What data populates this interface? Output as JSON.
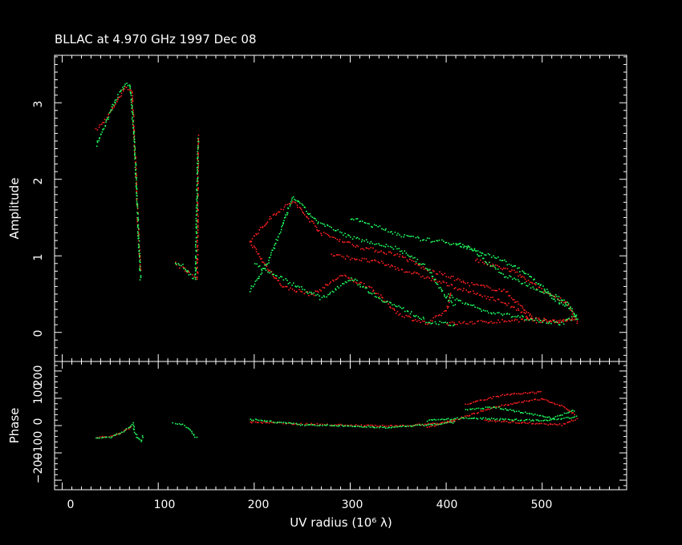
{
  "title": "BLLAC at 4.970 GHz 1997 Dec 08",
  "chart_data": [
    {
      "type": "scatter",
      "panel": "amplitude",
      "ylabel": "Amplitude",
      "xlim": [
        -8,
        588
      ],
      "ylim": [
        -0.38,
        3.62
      ],
      "x_ticks": [
        0,
        100,
        200,
        300,
        400,
        500
      ],
      "y_ticks": [
        0,
        1,
        2,
        3
      ],
      "tick_label_text": [
        "0",
        "1",
        "2",
        "3"
      ],
      "series": [
        {
          "color": "#ff2020",
          "segments": [
            [
              [
                35,
                2.65
              ],
              [
                45,
                2.8
              ],
              [
                55,
                3.0
              ],
              [
                65,
                3.22
              ],
              [
                72,
                3.15
              ],
              [
                75,
                2.4
              ],
              [
                78,
                1.5
              ],
              [
                81,
                0.78
              ]
            ],
            [
              [
                117,
                0.9
              ],
              [
                125,
                0.85
              ],
              [
                133,
                0.77
              ],
              [
                140,
                0.72
              ],
              [
                141,
                2.6
              ]
            ],
            [
              [
                195,
                1.2
              ],
              [
                210,
                0.9
              ],
              [
                230,
                0.6
              ],
              [
                260,
                0.5
              ],
              [
                290,
                0.75
              ],
              [
                320,
                0.6
              ],
              [
                350,
                0.25
              ],
              [
                380,
                0.12
              ],
              [
                400,
                0.3
              ],
              [
                405,
                0.55
              ]
            ],
            [
              [
                195,
                1.2
              ],
              [
                220,
                1.55
              ],
              [
                240,
                1.72
              ],
              [
                270,
                1.3
              ],
              [
                310,
                1.12
              ],
              [
                350,
                1.02
              ],
              [
                380,
                0.82
              ],
              [
                400,
                0.75
              ],
              [
                420,
                0.65
              ],
              [
                460,
                0.55
              ],
              [
                490,
                0.2
              ]
            ],
            [
              [
                280,
                1.02
              ],
              [
                330,
                0.92
              ],
              [
                380,
                0.72
              ],
              [
                420,
                0.55
              ],
              [
                460,
                0.4
              ],
              [
                480,
                0.25
              ],
              [
                490,
                0.15
              ],
              [
                520,
                0.16
              ],
              [
                535,
                0.2
              ]
            ],
            [
              [
                400,
                0.12
              ],
              [
                450,
                0.15
              ],
              [
                490,
                0.18
              ],
              [
                520,
                0.15
              ],
              [
                535,
                0.2
              ]
            ],
            [
              [
                430,
                0.95
              ],
              [
                470,
                0.8
              ],
              [
                500,
                0.55
              ],
              [
                525,
                0.4
              ],
              [
                537,
                0.1
              ]
            ]
          ]
        },
        {
          "color": "#20ff60",
          "segments": [
            [
              [
                35,
                2.45
              ],
              [
                45,
                2.75
              ],
              [
                55,
                3.05
              ],
              [
                65,
                3.25
              ],
              [
                70,
                3.25
              ],
              [
                75,
                2.4
              ],
              [
                78,
                1.5
              ],
              [
                81,
                0.68
              ]
            ],
            [
              [
                117,
                0.93
              ],
              [
                125,
                0.88
              ],
              [
                133,
                0.75
              ],
              [
                138,
                0.7
              ],
              [
                141,
                2.55
              ]
            ],
            [
              [
                195,
                0.55
              ],
              [
                215,
                0.95
              ],
              [
                240,
                1.78
              ],
              [
                265,
                1.45
              ],
              [
                300,
                1.25
              ],
              [
                350,
                1.1
              ],
              [
                380,
                0.85
              ],
              [
                400,
                0.45
              ],
              [
                410,
                0.35
              ]
            ],
            [
              [
                200,
                0.9
              ],
              [
                230,
                0.7
              ],
              [
                270,
                0.45
              ],
              [
                300,
                0.72
              ],
              [
                330,
                0.45
              ],
              [
                360,
                0.28
              ],
              [
                380,
                0.15
              ],
              [
                410,
                0.1
              ]
            ],
            [
              [
                300,
                1.5
              ],
              [
                360,
                1.25
              ],
              [
                420,
                1.15
              ],
              [
                460,
                0.75
              ],
              [
                500,
                0.55
              ],
              [
                530,
                0.3
              ],
              [
                537,
                0.15
              ]
            ],
            [
              [
                400,
                0.5
              ],
              [
                440,
                0.28
              ],
              [
                480,
                0.2
              ],
              [
                520,
                0.12
              ],
              [
                537,
                0.25
              ]
            ],
            [
              [
                410,
                1.15
              ],
              [
                450,
                1.0
              ],
              [
                480,
                0.8
              ],
              [
                510,
                0.5
              ],
              [
                530,
                0.35
              ]
            ]
          ]
        }
      ]
    },
    {
      "type": "scatter",
      "panel": "phase",
      "xlabel": "UV radius  (10⁶ λ)",
      "ylabel": "Phase",
      "xlim": [
        -8,
        588
      ],
      "ylim": [
        -235,
        235
      ],
      "x_ticks": [
        0,
        100,
        200,
        300,
        400,
        500
      ],
      "y_ticks": [
        -200,
        -100,
        0,
        100,
        200
      ],
      "x_tick_label_text": [
        "0",
        "100",
        "200",
        "300",
        "400",
        "500"
      ],
      "y_tick_label_text": [
        "−200",
        "−100",
        "0",
        "100",
        "200"
      ],
      "series": [
        {
          "color": "#ff2020",
          "segments": [
            [
              [
                35,
                -42
              ],
              [
                50,
                -38
              ],
              [
                60,
                -25
              ],
              [
                70,
                -5
              ],
              [
                72,
                5
              ]
            ],
            [
              [
                195,
                15
              ],
              [
                250,
                8
              ],
              [
                300,
                3
              ],
              [
                350,
                0
              ],
              [
                390,
                10
              ],
              [
                410,
                20
              ]
            ],
            [
              [
                380,
                -5
              ],
              [
                410,
                25
              ],
              [
                440,
                60
              ],
              [
                470,
                85
              ],
              [
                500,
                100
              ],
              [
                520,
                75
              ],
              [
                535,
                40
              ]
            ],
            [
              [
                420,
                80
              ],
              [
                460,
                115
              ],
              [
                500,
                125
              ]
            ],
            [
              [
                440,
                20
              ],
              [
                470,
                15
              ],
              [
                490,
                10
              ],
              [
                520,
                5
              ],
              [
                537,
                30
              ]
            ]
          ]
        },
        {
          "color": "#20ff60",
          "segments": [
            [
              [
                35,
                -42
              ],
              [
                50,
                -40
              ],
              [
                60,
                -25
              ],
              [
                70,
                -5
              ],
              [
                73,
                10
              ],
              [
                75,
                -20
              ],
              [
                78,
                -45
              ],
              [
                82,
                -55
              ],
              [
                84,
                -30
              ]
            ],
            [
              [
                115,
                10
              ],
              [
                125,
                5
              ],
              [
                133,
                -15
              ],
              [
                138,
                -40
              ],
              [
                141,
                -45
              ]
            ],
            [
              [
                195,
                25
              ],
              [
                250,
                5
              ],
              [
                300,
                0
              ],
              [
                340,
                -5
              ],
              [
                380,
                5
              ],
              [
                410,
                15
              ]
            ],
            [
              [
                380,
                20
              ],
              [
                420,
                30
              ],
              [
                460,
                25
              ],
              [
                500,
                20
              ],
              [
                537,
                35
              ]
            ],
            [
              [
                420,
                60
              ],
              [
                450,
                70
              ],
              [
                480,
                50
              ],
              [
                510,
                30
              ],
              [
                535,
                60
              ]
            ]
          ]
        }
      ]
    }
  ]
}
